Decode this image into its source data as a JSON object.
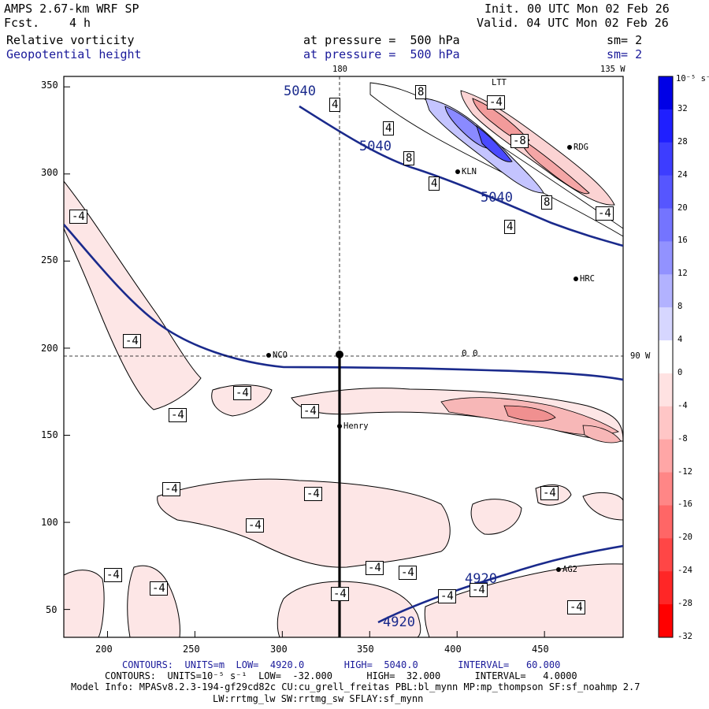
{
  "header": {
    "model": "AMPS 2.67-km WRF SP",
    "forecast_label": "Fcst.",
    "forecast_value": "4 h",
    "init": "Init. 00 UTC Mon 02 Feb 26",
    "valid": "Valid. 04 UTC Mon 02 Feb 26",
    "field1_name": "Relative vorticity",
    "field1_level": "at pressure =  500 hPa",
    "field1_smooth": "sm= 2",
    "field2_name": "Geopotential height",
    "field2_level": "at pressure =  500 hPa",
    "field2_smooth": "sm= 2"
  },
  "map": {
    "lon_labels": [
      "180",
      "135 W",
      "90 W"
    ],
    "stations": [
      "NCO",
      "Henry",
      "KLN",
      "RDG",
      "HRC",
      "AG2",
      "LTT"
    ],
    "height_labels": [
      "5040",
      "5040",
      "5040",
      "4920",
      "4920"
    ],
    "vorticity_labels": [
      "-4",
      "-4",
      "-4",
      "-4",
      "-4",
      "-4",
      "-4",
      "-4",
      "-4",
      "-4",
      "-4",
      "-4",
      "-4",
      "-4",
      "-4",
      "-4",
      "-4",
      "4",
      "4",
      "4",
      "4",
      "8",
      "8",
      "8",
      "-8",
      "-4",
      "-4",
      "0",
      "0"
    ],
    "colors": {
      "height_contour": "#1a2a8c",
      "cross_section": "#000000"
    }
  },
  "chart_data": {
    "type": "contour-map",
    "x_ticks": [
      "200",
      "250",
      "300",
      "350",
      "400",
      "450"
    ],
    "y_ticks": [
      "50",
      "100",
      "150",
      "200",
      "250",
      "300",
      "350"
    ],
    "xlim": [
      175,
      495
    ],
    "ylim": [
      34,
      356
    ],
    "colorbar": {
      "units_label": "10⁻⁵ s⁻¹",
      "ticks": [
        "32",
        "28",
        "24",
        "20",
        "16",
        "12",
        "8",
        "4",
        "0",
        "-4",
        "-8",
        "-12",
        "-16",
        "-20",
        "-24",
        "-28",
        "-32"
      ],
      "colors": [
        "#0000e6",
        "#1f1fff",
        "#3d3dff",
        "#5656ff",
        "#7474ff",
        "#9292ff",
        "#b2b2ff",
        "#d6d6ff",
        "#ffffff",
        "#ffe2e2",
        "#ffc6c6",
        "#ffa6a6",
        "#ff8686",
        "#ff6666",
        "#ff4646",
        "#ff2626",
        "#ff0000"
      ]
    }
  },
  "footer": {
    "contour1": "CONTOURS:  UNITS=m  LOW=  4920.0       HIGH=  5040.0       INTERVAL=   60.000",
    "contour2": "CONTOURS:  UNITS=10⁻⁵ s⁻¹  LOW=  -32.000      HIGH=  32.000      INTERVAL=   4.0000",
    "model_info1": "Model Info: MPASv8.2.3-194-gf29cd82c CU:cu_grell_freitas PBL:bl_mynn MP:mp_thompson SF:sf_noahmp 2.7",
    "model_info2": "LW:rrtmg_lw SW:rrtmg_sw SFLAY:sf_mynn"
  }
}
